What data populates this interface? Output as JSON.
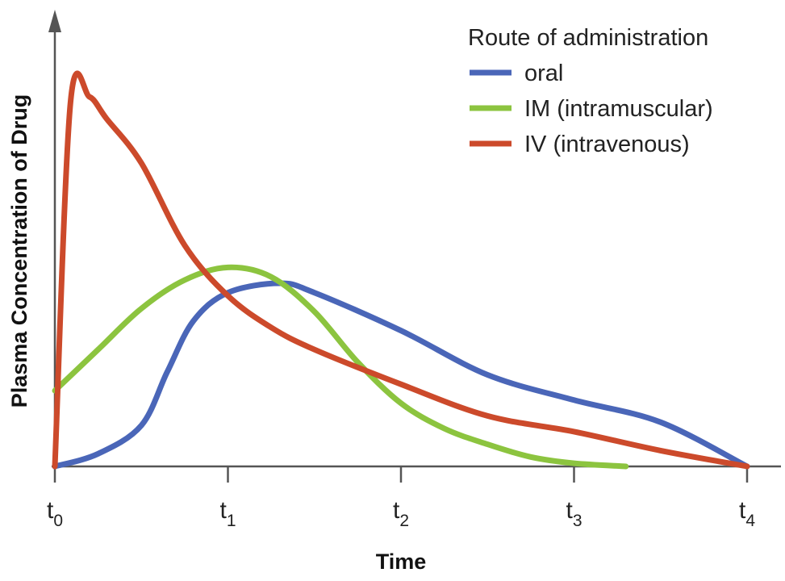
{
  "chart_data": {
    "type": "line",
    "xlabel": "Time",
    "ylabel": "Plasma Concentration of Drug",
    "x_ticks": [
      {
        "base": "t",
        "sub": "0",
        "value": 0
      },
      {
        "base": "t",
        "sub": "1",
        "value": 1
      },
      {
        "base": "t",
        "sub": "2",
        "value": 2
      },
      {
        "base": "t",
        "sub": "3",
        "value": 3
      },
      {
        "base": "t",
        "sub": "4",
        "value": 4
      }
    ],
    "xlim": [
      0,
      4.2
    ],
    "ylim": [
      0,
      1.2
    ],
    "grid": false,
    "legend": {
      "title": "Route of administration",
      "placement": "top-right"
    },
    "series": [
      {
        "name": "oral",
        "color": "#4a66b8",
        "points": [
          [
            0,
            0
          ],
          [
            0.25,
            0.04
          ],
          [
            0.5,
            0.13
          ],
          [
            0.65,
            0.3
          ],
          [
            0.8,
            0.46
          ],
          [
            1.0,
            0.55
          ],
          [
            1.3,
            0.58
          ],
          [
            1.5,
            0.55
          ],
          [
            2.0,
            0.43
          ],
          [
            2.5,
            0.29
          ],
          [
            3.0,
            0.21
          ],
          [
            3.5,
            0.14
          ],
          [
            4.0,
            0.0
          ]
        ]
      },
      {
        "name": "IM (intramuscular)",
        "color": "#8cc43f",
        "points": [
          [
            0,
            0.24
          ],
          [
            0.25,
            0.37
          ],
          [
            0.5,
            0.5
          ],
          [
            0.75,
            0.59
          ],
          [
            1.0,
            0.63
          ],
          [
            1.25,
            0.6
          ],
          [
            1.5,
            0.49
          ],
          [
            1.75,
            0.33
          ],
          [
            2.0,
            0.2
          ],
          [
            2.25,
            0.12
          ],
          [
            2.5,
            0.07
          ],
          [
            2.75,
            0.03
          ],
          [
            3.0,
            0.01
          ],
          [
            3.3,
            0.0
          ]
        ]
      },
      {
        "name": "IV (intravenous)",
        "color": "#cc4a2b",
        "points": [
          [
            0,
            0
          ],
          [
            0.09,
            1.15
          ],
          [
            0.2,
            1.17
          ],
          [
            0.3,
            1.1
          ],
          [
            0.5,
            0.96
          ],
          [
            0.75,
            0.7
          ],
          [
            1.0,
            0.54
          ],
          [
            1.25,
            0.44
          ],
          [
            1.5,
            0.37
          ],
          [
            2.0,
            0.26
          ],
          [
            2.5,
            0.16
          ],
          [
            3.0,
            0.11
          ],
          [
            3.5,
            0.05
          ],
          [
            4.0,
            0.0
          ]
        ]
      }
    ]
  }
}
